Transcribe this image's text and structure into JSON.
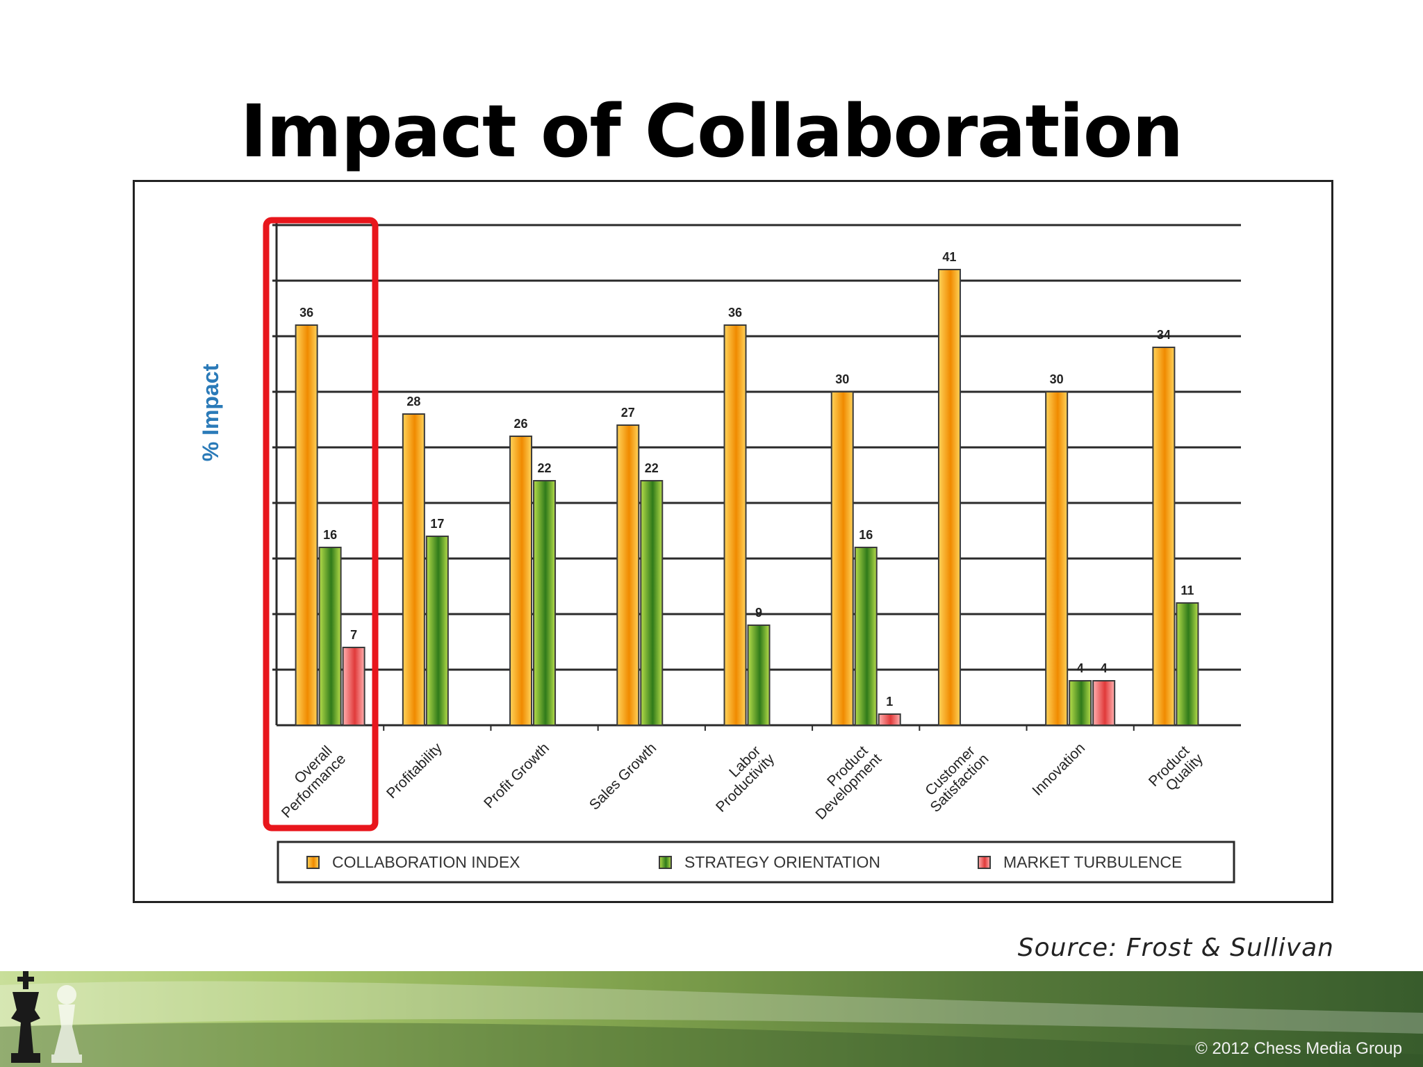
{
  "slide": {
    "title": "Impact of Collaboration",
    "source": "Source:  Frost & Sullivan",
    "copyright": "© 2012 Chess Media Group"
  },
  "colors": {
    "collaboration": "#f4a51c",
    "strategy": "#6fa62c",
    "market": "#ee6a6a",
    "highlight": "#e8161c"
  },
  "chart_data": {
    "type": "bar",
    "ylabel": "% Impact",
    "ylim": [
      0,
      45
    ],
    "grid": true,
    "legend_position": "bottom",
    "highlighted_category": "Overall Performance",
    "categories": [
      "Overall Performance",
      "Profitability",
      "Profit Growth",
      "Sales Growth",
      "Labor Productivity",
      "Product Development",
      "Customer Satisfaction",
      "Innovation",
      "Product Quality"
    ],
    "series": [
      {
        "name": "COLLABORATION INDEX",
        "values": [
          36,
          28,
          26,
          27,
          36,
          30,
          41,
          30,
          34
        ]
      },
      {
        "name": "STRATEGY ORIENTATION",
        "values": [
          16,
          17,
          22,
          22,
          9,
          16,
          null,
          4,
          11
        ]
      },
      {
        "name": "MARKET TURBULENCE",
        "values": [
          7,
          null,
          null,
          null,
          null,
          1,
          null,
          4,
          null
        ]
      }
    ]
  }
}
